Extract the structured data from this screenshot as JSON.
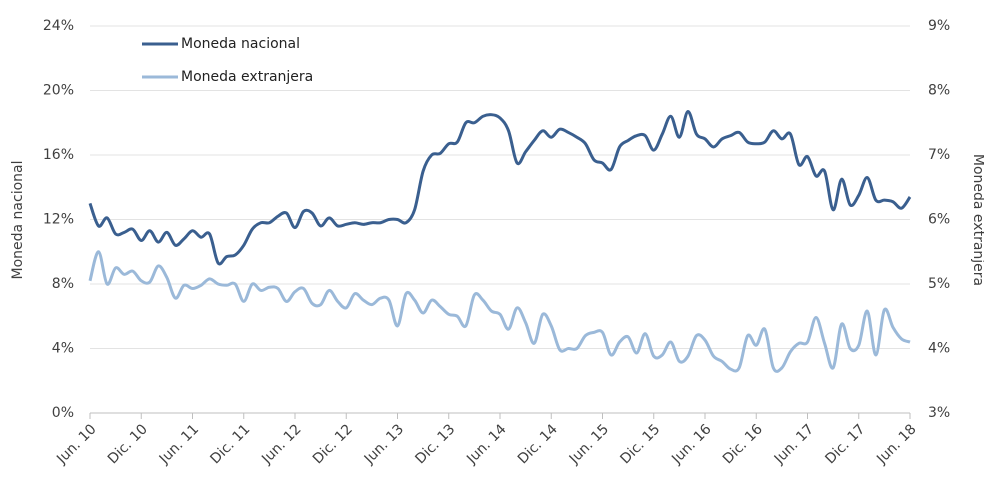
{
  "chart_data": {
    "type": "line",
    "y_label": "Moneda nacional",
    "y2_label": "Moneda extranjera",
    "categories": [
      "Jun. 10",
      null,
      null,
      null,
      null,
      null,
      "Dic. 10",
      null,
      null,
      null,
      null,
      null,
      "Jun. 11",
      null,
      null,
      null,
      null,
      null,
      "Dic. 11",
      null,
      null,
      null,
      null,
      null,
      "Jun. 12",
      null,
      null,
      null,
      null,
      null,
      "Dic. 12",
      null,
      null,
      null,
      null,
      null,
      "Jun. 13",
      null,
      null,
      null,
      null,
      null,
      "Dic. 13",
      null,
      null,
      null,
      null,
      null,
      "Jun. 14",
      null,
      null,
      null,
      null,
      null,
      "Dic. 14",
      null,
      null,
      null,
      null,
      null,
      "Jun. 15",
      null,
      null,
      null,
      null,
      null,
      "Dic. 15",
      null,
      null,
      null,
      null,
      null,
      "Jun. 16",
      null,
      null,
      null,
      null,
      null,
      "Dic. 16",
      null,
      null,
      null,
      null,
      null,
      "Jun. 17",
      null,
      null,
      null,
      null,
      null,
      "Dic. 17",
      null,
      null,
      null,
      null,
      null,
      "Jun. 18"
    ],
    "series": [
      {
        "name": "Moneda nacional",
        "color": "#3a5f8f",
        "axis": "y",
        "values": [
          13.0,
          11.6,
          12.1,
          11.1,
          11.2,
          11.4,
          10.7,
          11.3,
          10.6,
          11.2,
          10.4,
          10.8,
          11.3,
          10.9,
          11.1,
          9.3,
          9.7,
          9.8,
          10.4,
          11.4,
          11.8,
          11.8,
          12.2,
          12.4,
          11.5,
          12.5,
          12.4,
          11.6,
          12.1,
          11.6,
          11.7,
          11.8,
          11.7,
          11.8,
          11.8,
          12.0,
          12.0,
          11.8,
          12.6,
          15.0,
          16.0,
          16.1,
          16.7,
          16.8,
          18.0,
          18.0,
          18.4,
          18.5,
          18.3,
          17.5,
          15.5,
          16.2,
          16.9,
          17.5,
          17.1,
          17.6,
          17.4,
          17.1,
          16.7,
          15.7,
          15.5,
          15.1,
          16.5,
          16.9,
          17.2,
          17.2,
          16.3,
          17.3,
          18.4,
          17.1,
          18.7,
          17.3,
          17.0,
          16.5,
          17.0,
          17.2,
          17.4,
          16.8,
          16.7,
          16.8,
          17.5,
          17.0,
          17.3,
          15.4,
          15.9,
          14.7,
          15.0,
          12.6,
          14.5,
          12.9,
          13.5,
          14.6,
          13.2,
          13.2,
          13.1,
          12.7,
          13.4
        ]
      },
      {
        "name": "Moneda extranjera",
        "color": "#9bb9d9",
        "axis": "y2",
        "values": [
          5.05,
          5.5,
          5.0,
          5.25,
          5.15,
          5.2,
          5.05,
          5.03,
          5.28,
          5.1,
          4.78,
          4.98,
          4.93,
          4.98,
          5.08,
          5.0,
          4.98,
          5.0,
          4.73,
          5.0,
          4.9,
          4.95,
          4.93,
          4.73,
          4.88,
          4.93,
          4.7,
          4.68,
          4.9,
          4.73,
          4.63,
          4.85,
          4.75,
          4.68,
          4.78,
          4.75,
          4.35,
          4.85,
          4.75,
          4.55,
          4.75,
          4.65,
          4.53,
          4.5,
          4.35,
          4.83,
          4.75,
          4.58,
          4.53,
          4.3,
          4.63,
          4.4,
          4.08,
          4.53,
          4.35,
          3.98,
          4.0,
          4.0,
          4.2,
          4.25,
          4.25,
          3.9,
          4.1,
          4.18,
          3.93,
          4.23,
          3.88,
          3.9,
          4.1,
          3.8,
          3.88,
          4.2,
          4.13,
          3.88,
          3.8,
          3.68,
          3.7,
          4.2,
          4.05,
          4.3,
          3.7,
          3.7,
          3.95,
          4.08,
          4.1,
          4.48,
          4.08,
          3.7,
          4.38,
          4.0,
          4.05,
          4.58,
          3.9,
          4.6,
          4.33,
          4.15,
          4.1
        ]
      }
    ],
    "ylim": [
      0,
      24
    ],
    "yticks": [
      {
        "value": 0,
        "label": "0%"
      },
      {
        "value": 4,
        "label": "4%"
      },
      {
        "value": 8,
        "label": "8%"
      },
      {
        "value": 12,
        "label": "12%"
      },
      {
        "value": 16,
        "label": "16%"
      },
      {
        "value": 20,
        "label": "20%"
      },
      {
        "value": 24,
        "label": "24%"
      }
    ],
    "y2lim": [
      3,
      9
    ],
    "y2ticks": [
      {
        "value": 3,
        "label": "3%"
      },
      {
        "value": 4,
        "label": "4%"
      },
      {
        "value": 5,
        "label": "5%"
      },
      {
        "value": 6,
        "label": "6%"
      },
      {
        "value": 7,
        "label": "7%"
      },
      {
        "value": 8,
        "label": "8%"
      },
      {
        "value": 9,
        "label": "9%"
      }
    ],
    "grid": true,
    "legend": "upper left"
  }
}
